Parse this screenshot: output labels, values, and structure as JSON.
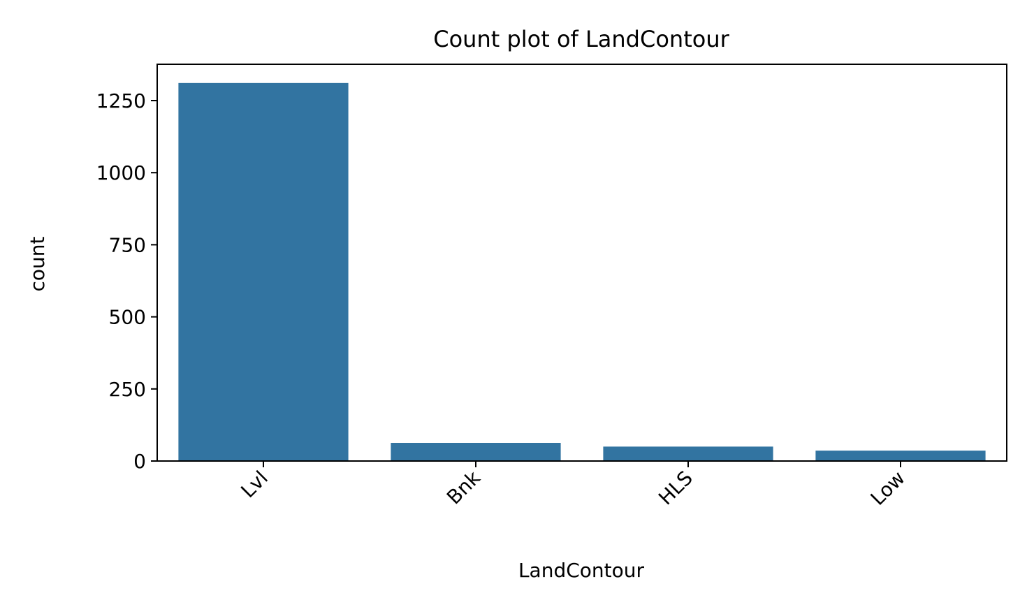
{
  "chart_data": {
    "type": "bar",
    "title": "Count plot of LandContour",
    "xlabel": "LandContour",
    "ylabel": "count",
    "categories": [
      "Lvl",
      "Bnk",
      "HLS",
      "Low"
    ],
    "values": [
      1311,
      63,
      50,
      36
    ],
    "ylim": [
      0,
      1376
    ],
    "yticks": [
      0,
      250,
      500,
      750,
      1000,
      1250
    ],
    "bar_color": "#3274a1",
    "grid": false,
    "legend": "none"
  }
}
